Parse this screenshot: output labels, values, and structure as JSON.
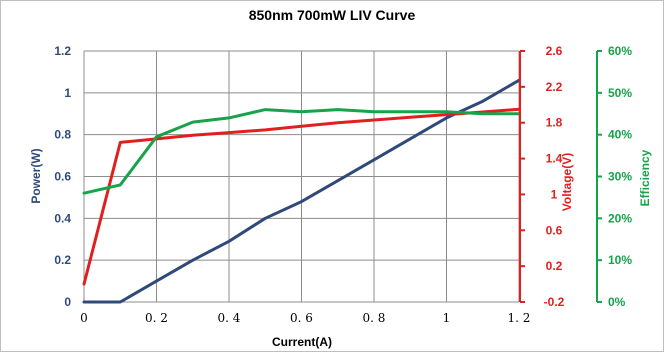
{
  "chart_data": {
    "type": "line",
    "title": "850nm 700mW LIV Curve",
    "xlabel": "Current(A)",
    "xlim": [
      0,
      1.2
    ],
    "x_ticks": [
      "0",
      "0. 2",
      "0. 4",
      "0. 6",
      "0. 8",
      "1",
      "1. 2"
    ],
    "x_tick_values": [
      0,
      0.2,
      0.4,
      0.6,
      0.8,
      1.0,
      1.2
    ],
    "axes": {
      "power": {
        "label": "Power(W)",
        "ylim": [
          0,
          1.2
        ],
        "ticks": [
          "0",
          "0.2",
          "0.4",
          "0.6",
          "0.8",
          "1",
          "1.2"
        ],
        "tick_values": [
          0,
          0.2,
          0.4,
          0.6,
          0.8,
          1.0,
          1.2
        ],
        "color": "#2f4a7a"
      },
      "voltage": {
        "label": "Voltage(V)",
        "ylim": [
          -0.2,
          2.6
        ],
        "ticks": [
          "-0.2",
          "0.2",
          "0.6",
          "1",
          "1.4",
          "1.8",
          "2.2",
          "2.6"
        ],
        "tick_values": [
          -0.2,
          0.2,
          0.6,
          1.0,
          1.4,
          1.8,
          2.2,
          2.6
        ],
        "color": "#e02020"
      },
      "efficiency": {
        "label": "Efficiency",
        "ylim": [
          0,
          60
        ],
        "ticks": [
          "0%",
          "10%",
          "20%",
          "30%",
          "40%",
          "50%",
          "60%"
        ],
        "tick_values": [
          0,
          10,
          20,
          30,
          40,
          50,
          60
        ],
        "color": "#16a34a"
      }
    },
    "grid": true,
    "series": [
      {
        "axis": "power",
        "color": "#2f4a7a",
        "x": [
          0,
          0.1,
          0.2,
          0.3,
          0.4,
          0.5,
          0.6,
          0.7,
          0.8,
          0.9,
          1.0,
          1.1,
          1.2
        ],
        "values": [
          0.0,
          0.0,
          0.1,
          0.2,
          0.29,
          0.4,
          0.48,
          0.58,
          0.68,
          0.78,
          0.88,
          0.96,
          1.06
        ]
      },
      {
        "axis": "voltage",
        "color": "#e02020",
        "x": [
          0,
          0.1,
          0.2,
          0.3,
          0.4,
          0.5,
          0.6,
          0.7,
          0.8,
          0.9,
          1.0,
          1.1,
          1.2
        ],
        "values": [
          0.0,
          1.58,
          1.62,
          1.66,
          1.69,
          1.72,
          1.76,
          1.8,
          1.83,
          1.86,
          1.89,
          1.92,
          1.95
        ]
      },
      {
        "axis": "efficiency",
        "color": "#16a34a",
        "x": [
          0,
          0.1,
          0.2,
          0.3,
          0.4,
          0.5,
          0.6,
          0.7,
          0.8,
          0.9,
          1.0,
          1.1,
          1.2
        ],
        "values": [
          26,
          28,
          39.5,
          43,
          44,
          46,
          45.5,
          46,
          45.5,
          45.5,
          45.5,
          45,
          45
        ]
      }
    ]
  }
}
